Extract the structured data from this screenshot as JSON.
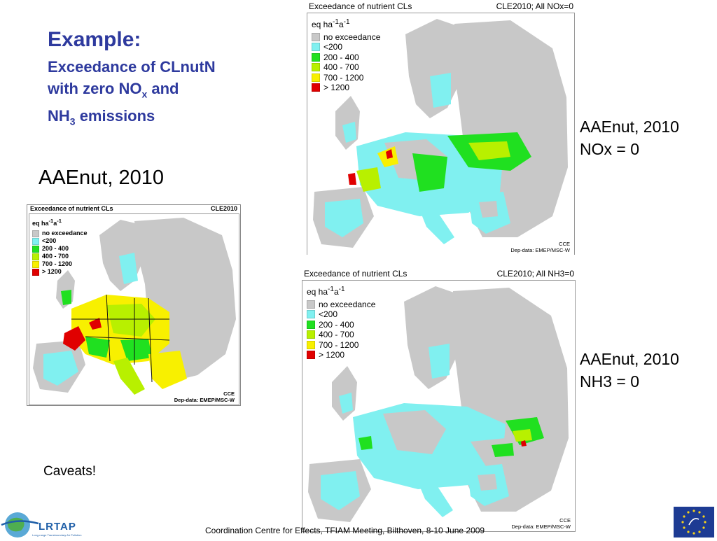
{
  "slide": {
    "title": "Example:",
    "subtitle_line1": "Exceedance of CLnutN",
    "subtitle_line2_prefix": "with zero NO",
    "subtitle_line2_sub": "x",
    "subtitle_line2_suffix": " and",
    "subtitle_line3_prefix": "NH",
    "subtitle_line3_sub": "3",
    "subtitle_line3_suffix": " emissions",
    "left_label": "AAEnut, 2010",
    "right_top_label_line1": "AAEnut, 2010",
    "right_top_label_line2": "NOx = 0",
    "right_bottom_label_line1": "AAEnut, 2010",
    "right_bottom_label_line2": "NH3 = 0",
    "caveats": "Caveats!",
    "footer": "Coordination Centre for Effects, TFIAM Meeting, Bilthoven, 8-10 June 2009",
    "logo_left_text": "LRTAP",
    "logo_left_tagline": "Long-range Transboundary Air Pollution"
  },
  "maps": {
    "left": {
      "title": "Exceedance of nutrient CLs",
      "scenario": "CLE2010",
      "credit_line1": "CCE",
      "credit_line2": "Dep-data: EMEP/MSC-W"
    },
    "top_right": {
      "title": "Exceedance of nutrient CLs",
      "scenario": "CLE2010; All NOx=0",
      "credit_line1": "CCE",
      "credit_line2": "Dep-data: EMEP/MSC-W"
    },
    "bottom_right": {
      "title": "Exceedance of nutrient CLs",
      "scenario": "CLE2010; All NH3=0",
      "credit_line1": "CCE",
      "credit_line2": "Dep-data: EMEP/MSC-W"
    }
  },
  "legend": {
    "unit_prefix": "eq ha",
    "unit_exp1": "-1",
    "unit_mid": "a",
    "unit_exp2": "-1",
    "items": [
      {
        "label": "no exceedance",
        "color": "#c8c8c8"
      },
      {
        "label": "<200",
        "color": "#80f0f0"
      },
      {
        "label": "200 - 400",
        "color": "#20e020"
      },
      {
        "label": "400 - 700",
        "color": "#b8f000"
      },
      {
        "label": "700 - 1200",
        "color": "#f8f000"
      },
      {
        "label": "> 1200",
        "color": "#e00000"
      }
    ]
  }
}
